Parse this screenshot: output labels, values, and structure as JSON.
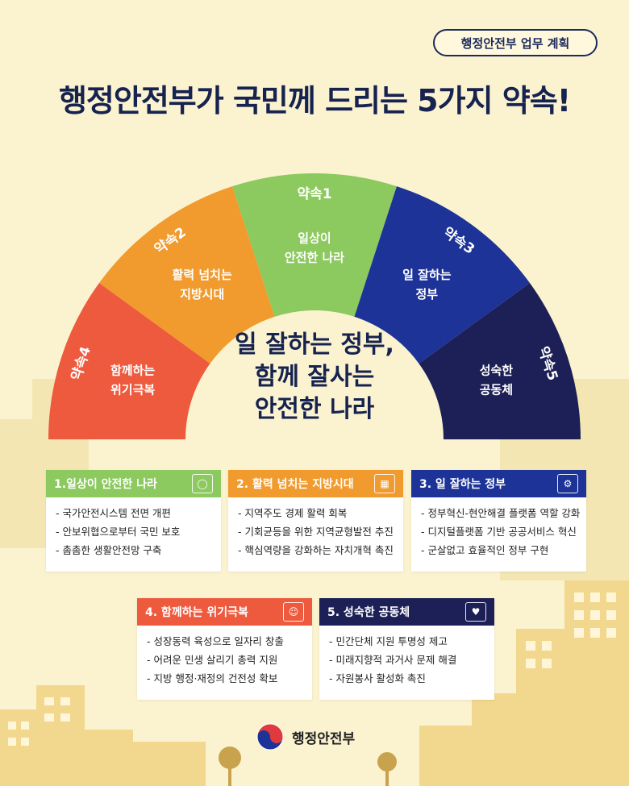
{
  "tag_label": "행정안전부 업무 계획",
  "title": "행정안전부가 국민께 드리는 5가지 약속!",
  "center_lines": [
    "일 잘하는 정부,",
    "함께 잘사는",
    "안전한 나라"
  ],
  "promises": [
    {
      "badge": "약속4",
      "text": [
        "함께하는",
        "위기극복"
      ],
      "color": "#ee5a3d"
    },
    {
      "badge": "약속2",
      "text": [
        "활력 넘치는",
        "지방시대"
      ],
      "color": "#f19a2e"
    },
    {
      "badge": "약속1",
      "text": [
        "일상이",
        "안전한 나라"
      ],
      "color": "#8cc95f"
    },
    {
      "badge": "약속3",
      "text": [
        "일 잘하는",
        "정부"
      ],
      "color": "#1d3397"
    },
    {
      "badge": "약속5",
      "text": [
        "성숙한",
        "공동체"
      ],
      "color": "#1d2056"
    }
  ],
  "cards": [
    {
      "title": "1.일상이 안전한 나라",
      "color": "#8cc95f",
      "icon": "shield-icon",
      "items": [
        "- 국가안전시스템 전면 개편",
        "- 안보위협으로부터 국민 보호",
        "- 촘촘한 생활안전망 구축"
      ]
    },
    {
      "title": "2. 활력 넘치는 지방시대",
      "color": "#f19a2e",
      "icon": "city-icon",
      "items": [
        "- 지역주도 경제 활력 회복",
        "- 기회균등을 위한 지역균형발전 추진",
        "- 핵심역량을 강화하는 자치개혁 촉진"
      ]
    },
    {
      "title": "3. 일 잘하는 정부",
      "color": "#1d3397",
      "icon": "gear-icon",
      "items": [
        "- 정부혁신-현안해결 플랫폼 역할 강화",
        "- 디지털플랫폼 기반 공공서비스 혁신",
        "- 군살없고 효율적인 정부 구현"
      ]
    },
    {
      "title": "4. 함께하는 위기극복",
      "color": "#ee5a3d",
      "icon": "people-icon",
      "items": [
        "- 성장동력 육성으로 일자리 창출",
        "- 어려운 민생 살리기 총력 지원",
        "- 지방 행정·재정의 건전성 확보"
      ]
    },
    {
      "title": "5. 성숙한 공동체",
      "color": "#1d2056",
      "icon": "hands-icon",
      "items": [
        "- 민간단체 지원 투명성 제고",
        "- 미래지향적 과거사 문제 해결",
        "- 자원봉사 활성화 촉진"
      ]
    }
  ],
  "footer_label": "행정안전부"
}
